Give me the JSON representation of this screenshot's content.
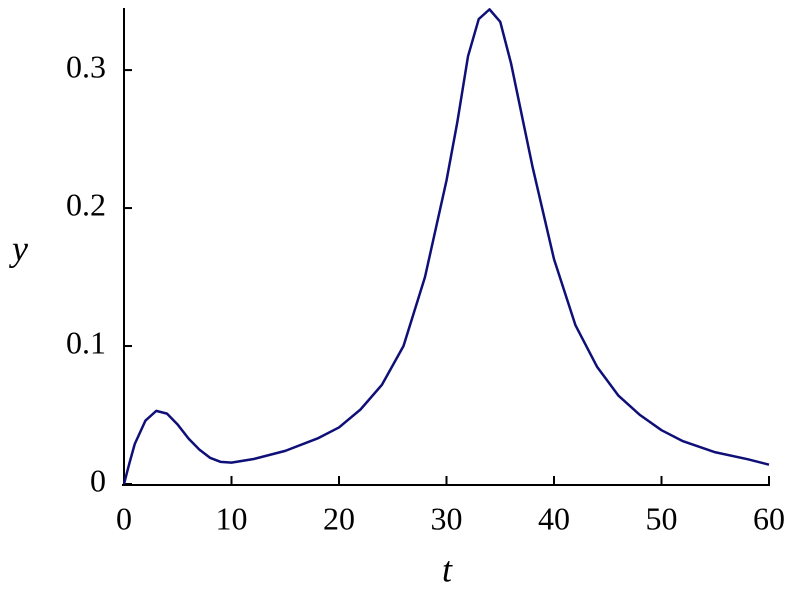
{
  "chart_data": {
    "type": "line",
    "x_label": "t",
    "y_label": "y",
    "x": [
      0,
      0.5,
      1,
      2,
      3,
      4,
      5,
      6,
      7,
      8,
      9,
      10,
      12,
      15,
      18,
      20,
      22,
      24,
      26,
      28,
      30,
      31,
      32,
      33,
      34,
      35,
      36,
      38,
      40,
      42,
      44,
      46,
      48,
      50,
      52,
      55,
      58,
      60
    ],
    "values": [
      0,
      0.015,
      0.029,
      0.046,
      0.053,
      0.051,
      0.043,
      0.033,
      0.025,
      0.019,
      0.016,
      0.0155,
      0.018,
      0.024,
      0.033,
      0.041,
      0.054,
      0.072,
      0.1,
      0.15,
      0.22,
      0.262,
      0.31,
      0.337,
      0.344,
      0.335,
      0.305,
      0.23,
      0.163,
      0.115,
      0.085,
      0.064,
      0.05,
      0.039,
      0.031,
      0.023,
      0.018,
      0.014
    ],
    "color": "#0f0f78",
    "xlim": [
      0,
      60
    ],
    "xticks": [
      0,
      10,
      20,
      30,
      40,
      50,
      60
    ],
    "ylim": [
      0,
      0.345
    ],
    "yticks": [
      0,
      0.1,
      0.2,
      0.3
    ]
  }
}
